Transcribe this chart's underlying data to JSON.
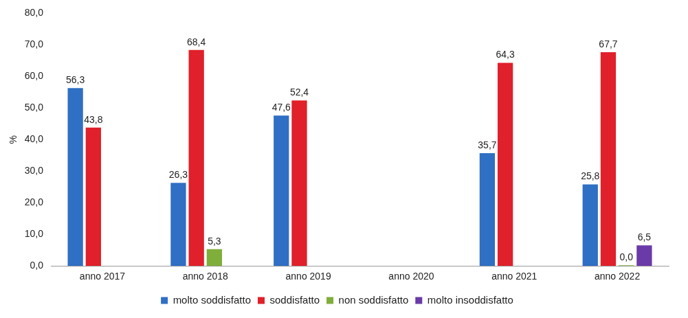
{
  "chart_data": {
    "type": "bar",
    "categories": [
      "anno 2017",
      "anno 2018",
      "anno 2019",
      "anno 2020",
      "anno 2021",
      "anno 2022"
    ],
    "ylabel": "%",
    "ylim": [
      0,
      80
    ],
    "yticks": [
      {
        "value": 0,
        "label": "0,0"
      },
      {
        "value": 10,
        "label": "10,0"
      },
      {
        "value": 20,
        "label": "20,0"
      },
      {
        "value": 30,
        "label": "30,0"
      },
      {
        "value": 40,
        "label": "40,0"
      },
      {
        "value": 50,
        "label": "50,0"
      },
      {
        "value": 60,
        "label": "60,0"
      },
      {
        "value": 70,
        "label": "70,0"
      },
      {
        "value": 80,
        "label": "80,0"
      }
    ],
    "grid": false,
    "legend": "bottom",
    "series": [
      {
        "name": "molto soddisfatto",
        "color": "#2f6fc4",
        "values": [
          56.3,
          26.3,
          47.6,
          null,
          35.7,
          25.8
        ],
        "value_labels": [
          "56,3",
          "26,3",
          "47,6",
          null,
          "35,7",
          "25,8"
        ]
      },
      {
        "name": "soddisfatto",
        "color": "#e0202a",
        "values": [
          43.8,
          68.4,
          52.4,
          null,
          64.3,
          67.7
        ],
        "value_labels": [
          "43,8",
          "68,4",
          "52,4",
          null,
          "64,3",
          "67,7"
        ]
      },
      {
        "name": "non soddisfatto",
        "color": "#7fae3a",
        "values": [
          null,
          5.3,
          null,
          null,
          null,
          0
        ],
        "value_labels": [
          null,
          "5,3",
          null,
          null,
          null,
          "0,0"
        ]
      },
      {
        "name": "molto insoddisfatto",
        "color": "#6a3aa8",
        "values": [
          null,
          null,
          null,
          null,
          null,
          6.5
        ],
        "value_labels": [
          null,
          null,
          null,
          null,
          null,
          "6,5"
        ]
      }
    ]
  }
}
